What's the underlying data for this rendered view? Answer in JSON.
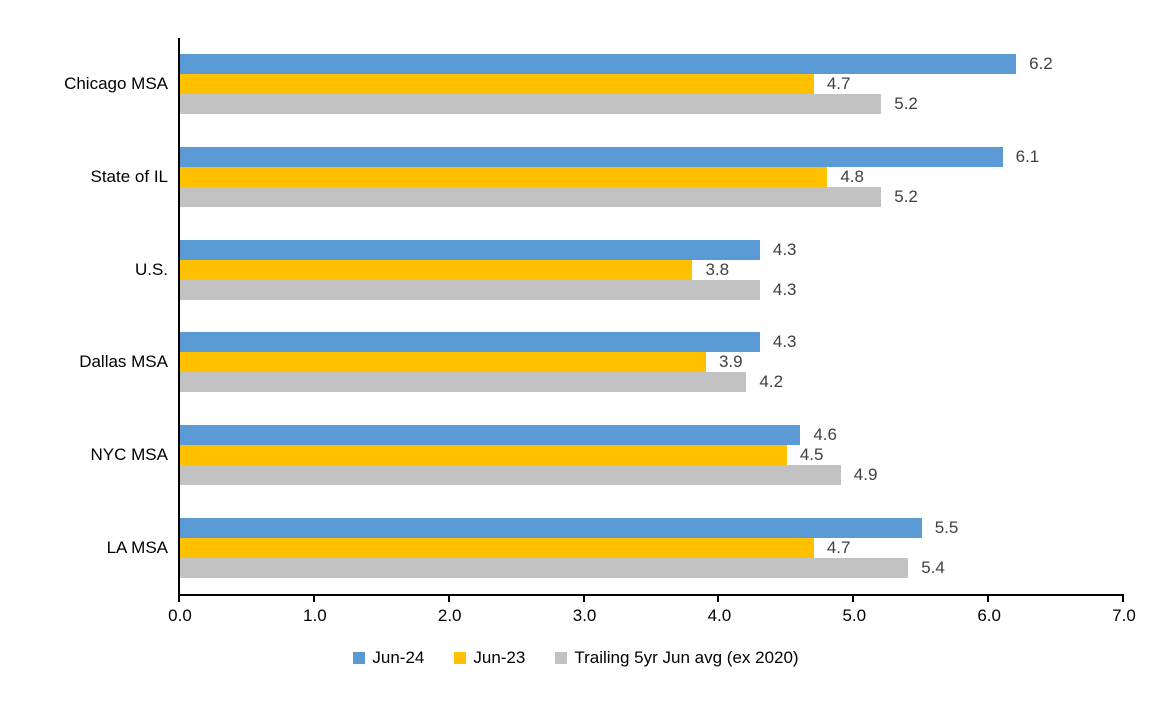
{
  "chart_data": {
    "type": "bar",
    "orientation": "horizontal",
    "title": "",
    "xlabel": "",
    "ylabel": "",
    "categories": [
      "Chicago MSA",
      "State of IL",
      "U.S.",
      "Dallas MSA",
      "NYC MSA",
      "LA MSA"
    ],
    "series": [
      {
        "name": "Jun-24",
        "color": "#5B9BD5",
        "values": [
          6.2,
          6.1,
          4.3,
          4.3,
          4.6,
          5.5
        ]
      },
      {
        "name": "Jun-23",
        "color": "#FFC000",
        "values": [
          4.7,
          4.8,
          3.8,
          3.9,
          4.5,
          4.7
        ]
      },
      {
        "name": "Trailing 5yr Jun avg (ex 2020)",
        "color": "#C2C2C2",
        "values": [
          5.2,
          5.2,
          4.3,
          4.2,
          4.9,
          5.4
        ]
      }
    ],
    "xlim": [
      0.0,
      7.0
    ],
    "x_tick_labels": [
      "0.0",
      "1.0",
      "2.0",
      "3.0",
      "4.0",
      "5.0",
      "6.0",
      "7.0"
    ],
    "grid": false,
    "legend_position": "bottom",
    "data_labels": true,
    "data_label_color": "#404040",
    "axis_color": "#000000",
    "text_color": "#000000",
    "background_color": "#ffffff"
  }
}
